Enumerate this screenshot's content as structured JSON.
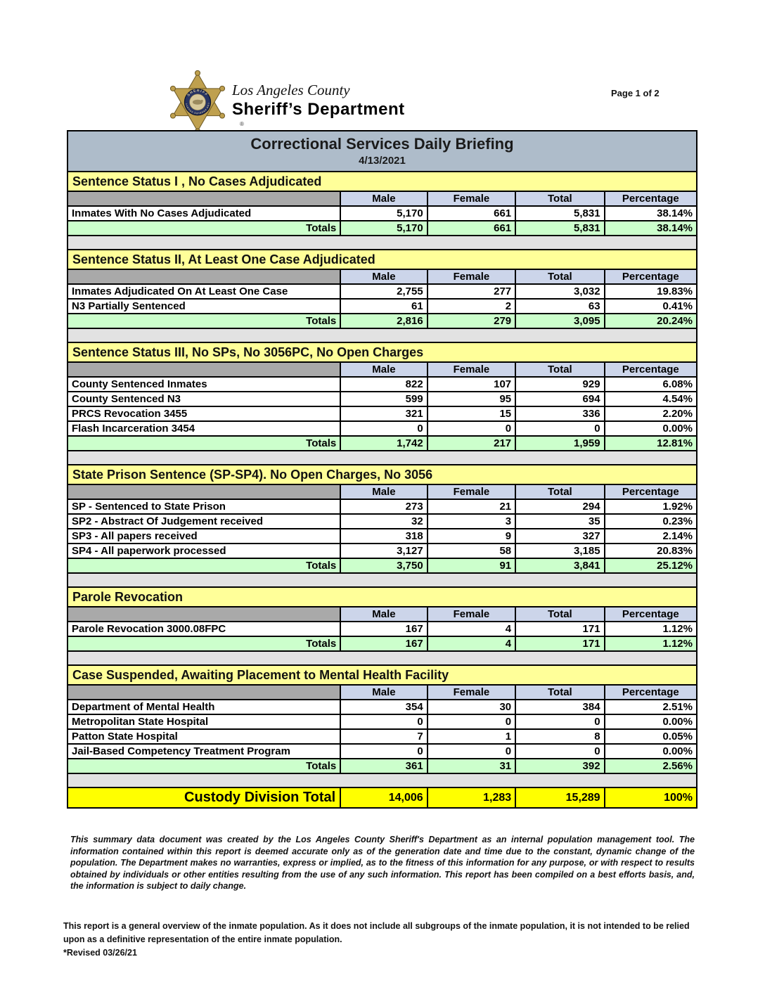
{
  "header": {
    "page_label": "Page 1 of 2"
  },
  "logo": {
    "county": "Los Angeles County",
    "department": "Sheriff’s Department",
    "badge_top": "SHERIFF",
    "badge_bottom": "LOS ANGELES COUNTY",
    "registered_mark": "®"
  },
  "title": {
    "heading": "Correctional Services Daily Briefing",
    "date": "4/13/2021"
  },
  "columns": [
    "Male",
    "Female",
    "Total",
    "Percentage"
  ],
  "labels": {
    "totals": "Totals"
  },
  "sections": [
    {
      "title": "Sentence Status I , No Cases Adjudicated",
      "rows": [
        {
          "label": "Inmates With No Cases Adjudicated",
          "male": "5,170",
          "female": "661",
          "total": "5,831",
          "pct": "38.14%"
        }
      ],
      "totals": {
        "male": "5,170",
        "female": "661",
        "total": "5,831",
        "pct": "38.14%"
      }
    },
    {
      "title": "Sentence Status II, At Least One Case Adjudicated",
      "rows": [
        {
          "label": "Inmates Adjudicated On At Least One Case",
          "male": "2,755",
          "female": "277",
          "total": "3,032",
          "pct": "19.83%"
        },
        {
          "label": "N3 Partially Sentenced",
          "male": "61",
          "female": "2",
          "total": "63",
          "pct": "0.41%"
        }
      ],
      "totals": {
        "male": "2,816",
        "female": "279",
        "total": "3,095",
        "pct": "20.24%"
      }
    },
    {
      "title": "Sentence Status III, No SPs, No 3056PC, No Open Charges",
      "rows": [
        {
          "label": "County Sentenced Inmates",
          "male": "822",
          "female": "107",
          "total": "929",
          "pct": "6.08%"
        },
        {
          "label": "County Sentenced N3",
          "male": "599",
          "female": "95",
          "total": "694",
          "pct": "4.54%"
        },
        {
          "label": "PRCS Revocation 3455",
          "male": "321",
          "female": "15",
          "total": "336",
          "pct": "2.20%"
        },
        {
          "label": "Flash Incarceration 3454",
          "male": "0",
          "female": "0",
          "total": "0",
          "pct": "0.00%"
        }
      ],
      "totals": {
        "male": "1,742",
        "female": "217",
        "total": "1,959",
        "pct": "12.81%"
      }
    },
    {
      "title": "State Prison Sentence (SP-SP4). No Open Charges, No 3056",
      "rows": [
        {
          "label": "SP - Sentenced to State Prison",
          "male": "273",
          "female": "21",
          "total": "294",
          "pct": "1.92%"
        },
        {
          "label": "SP2 - Abstract Of Judgement received",
          "male": "32",
          "female": "3",
          "total": "35",
          "pct": "0.23%"
        },
        {
          "label": "SP3 - All papers received",
          "male": "318",
          "female": "9",
          "total": "327",
          "pct": "2.14%"
        },
        {
          "label": "SP4 - All paperwork processed",
          "male": "3,127",
          "female": "58",
          "total": "3,185",
          "pct": "20.83%"
        }
      ],
      "totals": {
        "male": "3,750",
        "female": "91",
        "total": "3,841",
        "pct": "25.12%"
      }
    },
    {
      "title": "Parole Revocation",
      "rows": [
        {
          "label": "Parole Revocation 3000.08FPC",
          "male": "167",
          "female": "4",
          "total": "171",
          "pct": "1.12%"
        }
      ],
      "totals": {
        "male": "167",
        "female": "4",
        "total": "171",
        "pct": "1.12%"
      }
    },
    {
      "title": "Case Suspended, Awaiting Placement to Mental Health Facility",
      "rows": [
        {
          "label": "Department of Mental Health",
          "male": "354",
          "female": "30",
          "total": "384",
          "pct": "2.51%"
        },
        {
          "label": "Metropolitan State Hospital",
          "male": "0",
          "female": "0",
          "total": "0",
          "pct": "0.00%"
        },
        {
          "label": "Patton State Hospital",
          "male": "7",
          "female": "1",
          "total": "8",
          "pct": "0.05%"
        },
        {
          "label": "Jail-Based Competency Treatment Program",
          "male": "0",
          "female": "0",
          "total": "0",
          "pct": "0.00%"
        }
      ],
      "totals": {
        "male": "361",
        "female": "31",
        "total": "392",
        "pct": "2.56%"
      }
    }
  ],
  "grand_total": {
    "label": "Custody Division Total",
    "male": "14,006",
    "female": "1,283",
    "total": "15,289",
    "pct": "100%"
  },
  "footer": {
    "disclaimer": "This summary data document was created by the Los Angeles County Sheriff's Department as an internal population management tool.  The information contained within this report is deemed accurate only as of the generation date and time due to the constant, dynamic change of the population.  The Department makes no warranties, express or implied, as to the fitness of this information for any purpose, or with respect to results obtained by individuals or other entities resulting from the use of any such information.  This report has been compiled on a best efforts basis, and, the information is subject to daily change.",
    "footnote": "This report is a general overview of the inmate population.  As it does not include all subgroups of the inmate population, it is not intended to be relied upon as a definitive representation of the entire inmate population.",
    "revised": "*Revised 03/26/21"
  },
  "colors": {
    "title_bar": "#aebcca",
    "section_header": "#ffff99",
    "column_header": "#ccd5ea",
    "totals_row": "#ccffcc",
    "grand_total_row": "#ffff00",
    "spacer_gray": "#a9a9a9",
    "gap_gray": "#e2e2e2",
    "badge_gold": "#bfa04e",
    "badge_navy": "#283463"
  }
}
